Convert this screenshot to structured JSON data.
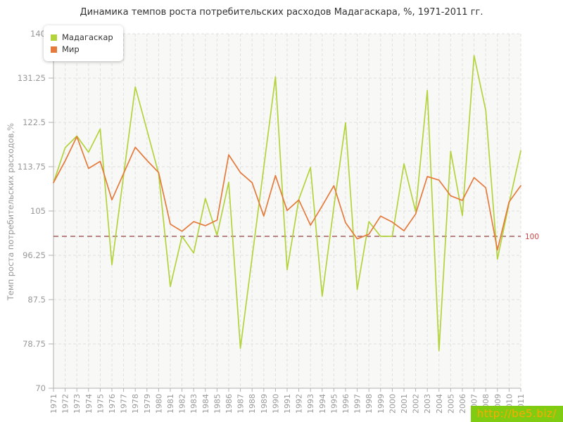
{
  "title": "Динамика темпов роста потребительских расходов Мадагаскара, %, 1971-2011 гг.",
  "y_axis": {
    "title": "Темп роста потребительских расходов,%",
    "ticks": [
      70,
      78.75,
      87.5,
      96.25,
      105,
      113.75,
      122.5,
      131.25,
      140
    ],
    "min": 70,
    "max": 140,
    "tick_color": "#999999"
  },
  "x_axis": {
    "years": [
      "1971",
      "1972",
      "1973",
      "1974",
      "1975",
      "1976",
      "1977",
      "1978",
      "1979",
      "1980",
      "1981",
      "1982",
      "1983",
      "1984",
      "1985",
      "1986",
      "1987",
      "1988",
      "1989",
      "1990",
      "1991",
      "1992",
      "1993",
      "1994",
      "1995",
      "1996",
      "1997",
      "1998",
      "1999",
      "2000",
      "2001",
      "2002",
      "2003",
      "2004",
      "2005",
      "2006",
      "2007",
      "2008",
      "2009",
      "2010",
      "2011"
    ],
    "tick_color": "#999999"
  },
  "guide": {
    "value": 100,
    "label": "100",
    "line_color": "#a35c5c",
    "label_color": "#cc4444"
  },
  "watermark": {
    "text": "http://be5.biz/",
    "bg": "#80cc12",
    "color": "#ffa800"
  },
  "colors": {
    "grid": "#e0e0de",
    "axis": "#b0b0b0",
    "plot_bg": "#f8f8f6",
    "title": "#333333"
  },
  "chart_data": {
    "type": "line",
    "title": "Динамика темпов роста потребительских расходов Мадагаскара, %, 1971-2011 гг.",
    "xlabel": "",
    "ylabel": "Темп роста потребительских расходов,%",
    "ylim": [
      70,
      140
    ],
    "grid": true,
    "legend_position": "top-left",
    "guide_line": 100,
    "x": [
      1971,
      1972,
      1973,
      1974,
      1975,
      1976,
      1977,
      1978,
      1979,
      1980,
      1981,
      1982,
      1983,
      1984,
      1985,
      1986,
      1987,
      1988,
      1989,
      1990,
      1991,
      1992,
      1993,
      1994,
      1995,
      1996,
      1997,
      1998,
      1999,
      2000,
      2001,
      2002,
      2003,
      2004,
      2005,
      2006,
      2007,
      2008,
      2009,
      2010,
      2011
    ],
    "series": [
      {
        "name": "Мадагаскар",
        "color": "#b3d33c",
        "values": [
          110.6,
          117.5,
          119.8,
          116.6,
          121.2,
          94.4,
          112.0,
          129.5,
          121.0,
          112.4,
          90.1,
          100.0,
          96.7,
          107.5,
          100.2,
          110.7,
          77.9,
          95.8,
          113.6,
          131.5,
          93.4,
          107.3,
          113.6,
          88.2,
          105.8,
          122.4,
          89.5,
          102.9,
          100.0,
          100.0,
          114.3,
          104.9,
          128.8,
          77.4,
          116.8,
          104.1,
          135.7,
          124.9,
          95.5,
          106.5,
          116.9
        ]
      },
      {
        "name": "Мир",
        "color": "#e57a3c",
        "values": [
          110.6,
          114.9,
          119.7,
          113.4,
          114.8,
          107.2,
          112.4,
          117.6,
          115.0,
          112.6,
          102.4,
          101.0,
          102.9,
          102.1,
          103.2,
          116.1,
          112.6,
          110.6,
          104.0,
          112.0,
          105.1,
          107.2,
          102.2,
          106.0,
          110.0,
          102.7,
          99.5,
          100.4,
          104.0,
          102.8,
          101.1,
          104.4,
          111.8,
          111.1,
          108.0,
          107.1,
          111.6,
          109.6,
          97.3,
          106.8,
          110.0
        ]
      }
    ]
  }
}
